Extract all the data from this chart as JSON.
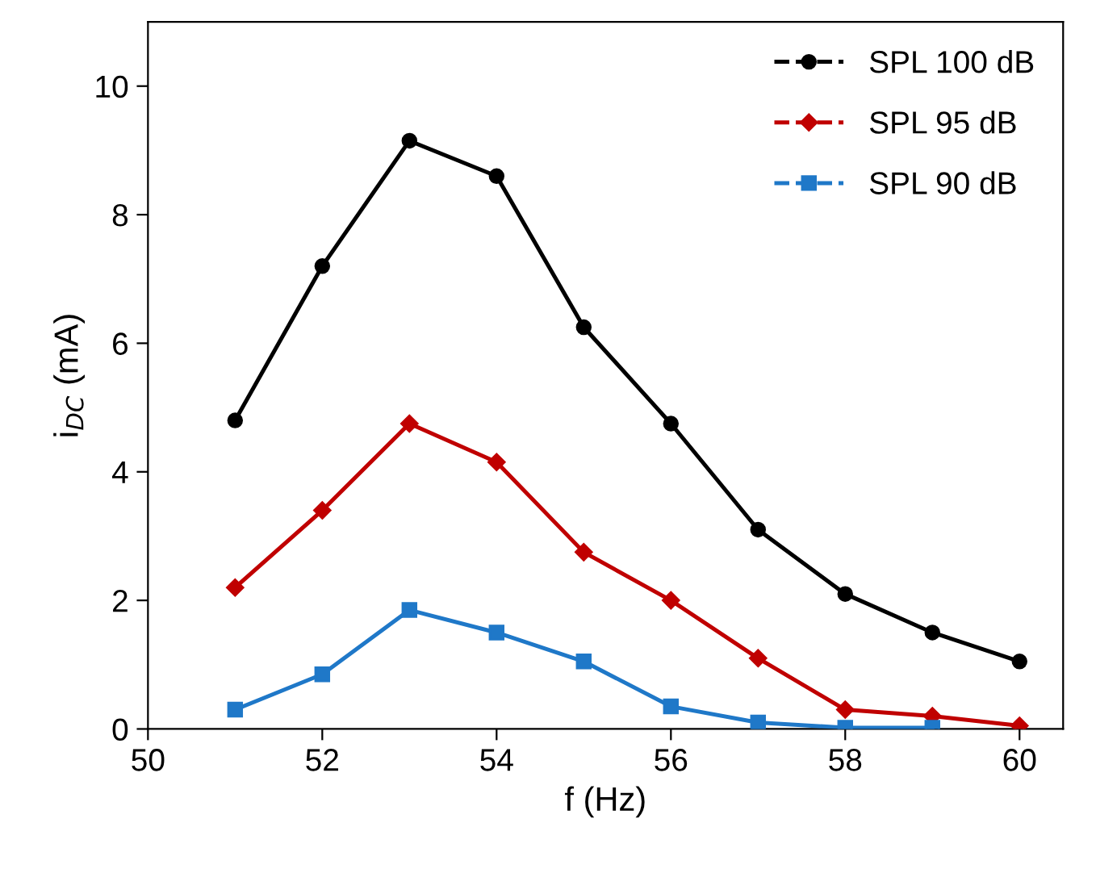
{
  "chart_data": {
    "type": "line",
    "xlabel": "f (Hz)",
    "ylabel": "i$_{DC}$ (mA)",
    "xlim": [
      50,
      60.5
    ],
    "xticks": [
      50,
      52,
      54,
      56,
      58,
      60
    ],
    "ylim": [
      0,
      11
    ],
    "yticks": [
      0,
      2,
      4,
      6,
      8,
      10
    ],
    "grid": false,
    "legend": "top right",
    "series": [
      {
        "name": "SPL 100 dB",
        "color": "#000000",
        "marker": "circle",
        "x": [
          51,
          52,
          53,
          54,
          55,
          56,
          57,
          58,
          59,
          60
        ],
        "values": [
          4.8,
          7.2,
          9.15,
          8.6,
          6.25,
          4.75,
          3.1,
          2.1,
          1.5,
          1.05
        ]
      },
      {
        "name": "SPL 95 dB",
        "color": "#c00000",
        "marker": "diamond",
        "x": [
          51,
          52,
          53,
          54,
          55,
          56,
          57,
          58,
          59,
          60
        ],
        "values": [
          2.2,
          3.4,
          4.75,
          4.15,
          2.75,
          2.0,
          1.1,
          0.3,
          0.2,
          0.05
        ]
      },
      {
        "name": "SPL 90 dB",
        "color": "#1f78c8",
        "marker": "square",
        "x": [
          51,
          52,
          53,
          54,
          55,
          56,
          57,
          58,
          59
        ],
        "values": [
          0.3,
          0.85,
          1.85,
          1.5,
          1.05,
          0.35,
          0.1,
          0.02,
          0.02
        ]
      }
    ]
  }
}
